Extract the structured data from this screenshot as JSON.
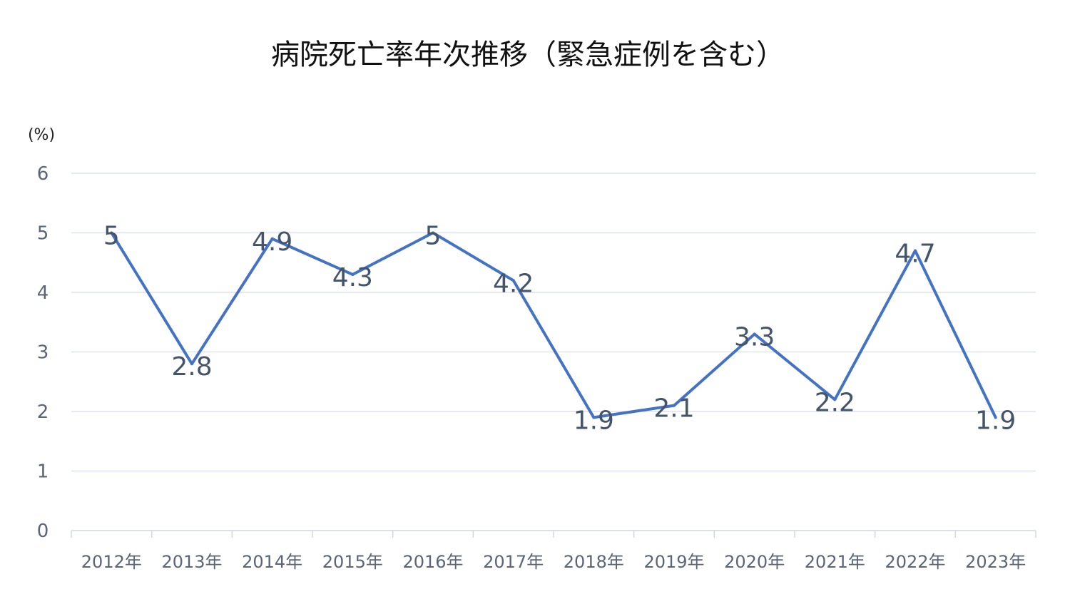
{
  "chart_data": {
    "type": "line",
    "title": "病院死亡率年次推移（緊急症例を含む）",
    "y_unit_label": "(%)",
    "categories": [
      "2012年",
      "2013年",
      "2014年",
      "2015年",
      "2016年",
      "2017年",
      "2018年",
      "2019年",
      "2020年",
      "2021年",
      "2022年",
      "2023年"
    ],
    "values": [
      5,
      2.8,
      4.9,
      4.3,
      5,
      4.2,
      1.9,
      2.1,
      3.3,
      2.2,
      4.7,
      1.9
    ],
    "data_labels": [
      "5",
      "2.8",
      "4.9",
      "4.3",
      "5",
      "4.2",
      "1.9",
      "2.1",
      "3.3",
      "2.2",
      "4.7",
      "1.9"
    ],
    "y_ticks": [
      "0",
      "1",
      "2",
      "3",
      "4",
      "5",
      "6"
    ],
    "ylim": [
      0,
      6
    ],
    "grid": true,
    "legend": "none",
    "colors": {
      "line": "#4472c4",
      "grid": "#dde3ec",
      "axis": "#d0d7e2"
    }
  }
}
